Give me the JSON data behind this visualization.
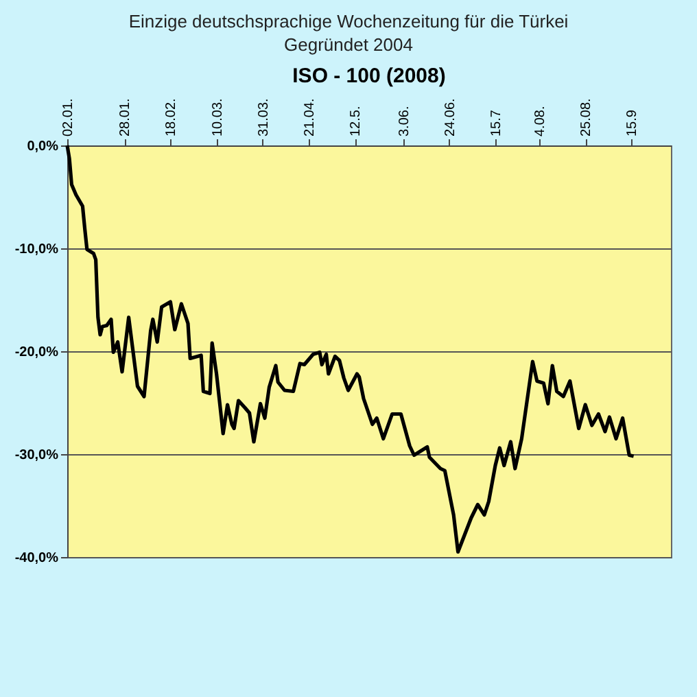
{
  "chart_data": {
    "type": "line",
    "title": "ISO - 100  (2008)",
    "annotations": [
      "Einzige deutschsprachige Wochenzeitung für die Türkei",
      "Gegründet 2004"
    ],
    "x": [
      "2008-01-02",
      "2008-01-03",
      "2008-01-04",
      "2008-01-06",
      "2008-01-09",
      "2008-01-10",
      "2008-01-11",
      "2008-01-14",
      "2008-01-15",
      "2008-01-16",
      "2008-01-17",
      "2008-01-18",
      "2008-01-20",
      "2008-01-22",
      "2008-01-23",
      "2008-01-25",
      "2008-01-27",
      "2008-01-30",
      "2008-02-03",
      "2008-02-06",
      "2008-02-09",
      "2008-02-10",
      "2008-02-12",
      "2008-02-14",
      "2008-02-18",
      "2008-02-20",
      "2008-02-23",
      "2008-02-26",
      "2008-02-27",
      "2008-03-03",
      "2008-03-04",
      "2008-03-07",
      "2008-03-08",
      "2008-03-10",
      "2008-03-13",
      "2008-03-15",
      "2008-03-17",
      "2008-03-18",
      "2008-03-20",
      "2008-03-23",
      "2008-03-25",
      "2008-03-27",
      "2008-03-30",
      "2008-04-01",
      "2008-04-03",
      "2008-04-06",
      "2008-04-07",
      "2008-04-10",
      "2008-04-14",
      "2008-04-17",
      "2008-04-19",
      "2008-04-23",
      "2008-04-26",
      "2008-04-27",
      "2008-04-29",
      "2008-04-30",
      "2008-05-03",
      "2008-05-05",
      "2008-05-07",
      "2008-05-09",
      "2008-05-13",
      "2008-05-14",
      "2008-05-16",
      "2008-05-20",
      "2008-05-22",
      "2008-05-25",
      "2008-05-29",
      "2008-06-02",
      "2008-06-06",
      "2008-06-08",
      "2008-06-11",
      "2008-06-14",
      "2008-06-15",
      "2008-06-20",
      "2008-06-22",
      "2008-06-26",
      "2008-06-28",
      "2008-07-04",
      "2008-07-07",
      "2008-07-10",
      "2008-07-12",
      "2008-07-15",
      "2008-07-17",
      "2008-07-19",
      "2008-07-22",
      "2008-07-24",
      "2008-07-27",
      "2008-08-01",
      "2008-08-03",
      "2008-08-06",
      "2008-08-08",
      "2008-08-10",
      "2008-08-12",
      "2008-08-15",
      "2008-08-18",
      "2008-08-22",
      "2008-08-25",
      "2008-08-28",
      "2008-08-31",
      "2008-09-03",
      "2008-09-05",
      "2008-09-08",
      "2008-09-11",
      "2008-09-14",
      "2008-09-16"
    ],
    "series": [
      {
        "color": "#000000",
        "values": [
          0,
          -1.3,
          -3.8,
          -4.8,
          -5.9,
          -8.1,
          -10.1,
          -10.5,
          -11.1,
          -16.7,
          -18.4,
          -17.6,
          -17.5,
          -16.9,
          -20.1,
          -19.1,
          -22.0,
          -16.7,
          -23.4,
          -24.4,
          -18.0,
          -16.9,
          -19.1,
          -15.7,
          -15.2,
          -17.9,
          -15.4,
          -17.3,
          -20.7,
          -20.4,
          -23.9,
          -24.1,
          -19.2,
          -22.2,
          -28.0,
          -25.2,
          -27.1,
          -27.5,
          -24.8,
          -25.5,
          -26.0,
          -28.8,
          -25.1,
          -26.5,
          -23.5,
          -21.4,
          -23.0,
          -23.8,
          -23.9,
          -21.2,
          -21.3,
          -20.3,
          -20.1,
          -21.3,
          -20.3,
          -22.2,
          -20.5,
          -20.9,
          -22.6,
          -23.8,
          -22.2,
          -22.5,
          -24.6,
          -27.1,
          -26.5,
          -28.5,
          -26.1,
          -26.1,
          -29.2,
          -30.1,
          -29.7,
          -29.3,
          -30.3,
          -31.4,
          -31.6,
          -35.9,
          -39.5,
          -36.2,
          -34.9,
          -35.9,
          -34.6,
          -31.1,
          -29.4,
          -31.1,
          -28.8,
          -31.4,
          -28.5,
          -21.0,
          -22.9,
          -23.1,
          -25.1,
          -21.4,
          -23.9,
          -24.4,
          -22.9,
          -27.5,
          -25.2,
          -27.2,
          -26.1,
          -27.8,
          -26.4,
          -28.5,
          -26.5,
          -30.1,
          -30.2
        ]
      }
    ],
    "xlim": [
      "2008-01-02",
      "2008-10-03"
    ],
    "xticks": [
      {
        "value": "2008-01-02",
        "label": "02.01."
      },
      {
        "value": "2008-01-28",
        "label": "28.01."
      },
      {
        "value": "2008-02-18",
        "label": "18.02."
      },
      {
        "value": "2008-03-10",
        "label": "10.03."
      },
      {
        "value": "2008-03-31",
        "label": "31.03."
      },
      {
        "value": "2008-04-21",
        "label": "21.04."
      },
      {
        "value": "2008-05-12",
        "label": "12.5."
      },
      {
        "value": "2008-06-03",
        "label": "3.06."
      },
      {
        "value": "2008-06-24",
        "label": "24.06."
      },
      {
        "value": "2008-07-15",
        "label": "15.7"
      },
      {
        "value": "2008-08-04",
        "label": "4.08."
      },
      {
        "value": "2008-08-25",
        "label": "25.08."
      },
      {
        "value": "2008-09-15",
        "label": "15.9"
      }
    ],
    "ylim": [
      -40,
      0
    ],
    "yticks": [
      {
        "value": 0,
        "label": "0,0%"
      },
      {
        "value": -10,
        "label": "-10,0%"
      },
      {
        "value": -20,
        "label": "-20,0%"
      },
      {
        "value": -30,
        "label": "-30,0%"
      },
      {
        "value": -40,
        "label": "-40,0%"
      }
    ],
    "grid": "y",
    "marker": "none",
    "line_style": "solid"
  }
}
